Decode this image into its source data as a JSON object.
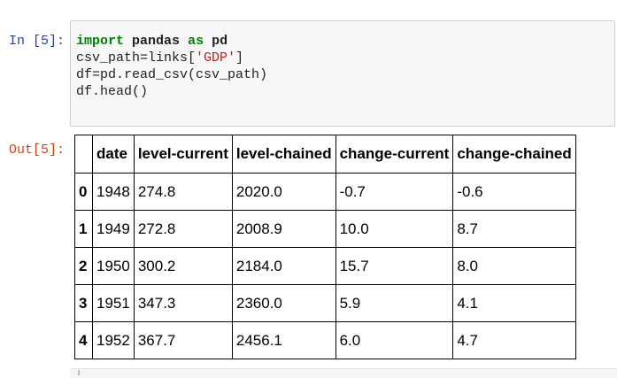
{
  "cell": {
    "in_prompt": "In [5]:",
    "out_prompt": "Out[5]:",
    "code": {
      "line1": {
        "kw_import": "import",
        "module": "pandas",
        "kw_as": "as",
        "alias": "pd"
      },
      "line2": {
        "prefix": "csv_path=links[",
        "string": "'GDP'",
        "suffix": "]"
      },
      "line3": "df=pd.read_csv(csv_path)",
      "line4": "df.head()"
    }
  },
  "table": {
    "columns": [
      "",
      "date",
      "level-current",
      "level-chained",
      "change-current",
      "change-chained"
    ],
    "rows": [
      {
        "index": "0",
        "date": "1948",
        "level_current": "274.8",
        "level_chained": "2020.0",
        "change_current": "-0.7",
        "change_chained": "-0.6"
      },
      {
        "index": "1",
        "date": "1949",
        "level_current": "272.8",
        "level_chained": "2008.9",
        "change_current": "10.0",
        "change_chained": "8.7"
      },
      {
        "index": "2",
        "date": "1950",
        "level_current": "300.2",
        "level_chained": "2184.0",
        "change_current": "15.7",
        "change_chained": "8.0"
      },
      {
        "index": "3",
        "date": "1951",
        "level_current": "347.3",
        "level_chained": "2360.0",
        "change_current": "5.9",
        "change_chained": "4.1"
      },
      {
        "index": "4",
        "date": "1952",
        "level_current": "367.7",
        "level_chained": "2456.1",
        "change_current": "6.0",
        "change_chained": "4.7"
      }
    ]
  },
  "colors": {
    "in_prompt": "#303f9f",
    "out_prompt": "#d84315",
    "keyword": "#008000",
    "string": "#ba2121",
    "input_bg": "#f7f7f7"
  }
}
